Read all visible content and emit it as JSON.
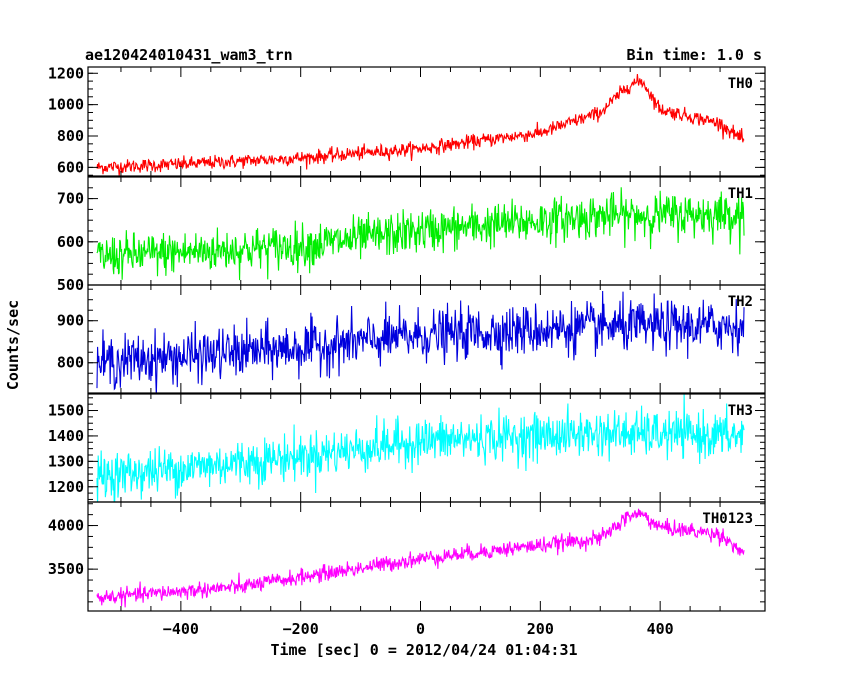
{
  "title_left": "ae120424010431_wam3_trn",
  "title_right": "Bin time: 1.0 s",
  "chart_data": {
    "type": "line",
    "xlabel": "Time [sec] 0 = 2012/04/24 01:04:31",
    "ylabel": "Counts/sec",
    "xlim": [
      -555,
      575
    ],
    "x_ticks": [
      -400,
      -200,
      0,
      200,
      400
    ],
    "x_range": [
      -540,
      540
    ],
    "bin_time_s": 1.0,
    "panels": [
      {
        "label": "TH0",
        "color": "#ff0000",
        "ylim": [
          545,
          1240
        ],
        "y_ticks": [
          600,
          800,
          1000,
          1200
        ],
        "profile_x": [
          -540,
          -400,
          -200,
          0,
          200,
          300,
          350,
          370,
          400,
          500,
          540
        ],
        "profile_y": [
          600,
          620,
          660,
          720,
          820,
          950,
          1130,
          1150,
          970,
          880,
          770
        ],
        "noise": 22
      },
      {
        "label": "TH1",
        "color": "#00ee00",
        "ylim": [
          500,
          750
        ],
        "y_ticks": [
          500,
          600,
          700
        ],
        "profile_x": [
          -540,
          -200,
          0,
          300,
          540
        ],
        "profile_y": [
          565,
          590,
          625,
          660,
          665
        ],
        "noise": 25
      },
      {
        "label": "TH2",
        "color": "#0000dd",
        "ylim": [
          728,
          985
        ],
        "y_ticks": [
          800,
          900
        ],
        "profile_x": [
          -540,
          -200,
          0,
          300,
          540
        ],
        "profile_y": [
          800,
          835,
          865,
          885,
          888
        ],
        "noise": 30
      },
      {
        "label": "TH3",
        "color": "#00ffff",
        "ylim": [
          1140,
          1565
        ],
        "y_ticks": [
          1200,
          1300,
          1400,
          1500
        ],
        "profile_x": [
          -540,
          -200,
          0,
          300,
          540
        ],
        "profile_y": [
          1240,
          1320,
          1380,
          1410,
          1400
        ],
        "noise": 45
      },
      {
        "label": "TH0123",
        "color": "#ff00ff",
        "ylim": [
          3020,
          4270
        ],
        "y_ticks": [
          3500,
          4000
        ],
        "profile_x": [
          -540,
          -300,
          0,
          300,
          350,
          370,
          400,
          500,
          540
        ],
        "profile_y": [
          3170,
          3300,
          3620,
          3850,
          4120,
          4130,
          3980,
          3900,
          3680
        ],
        "noise": 45
      }
    ]
  }
}
